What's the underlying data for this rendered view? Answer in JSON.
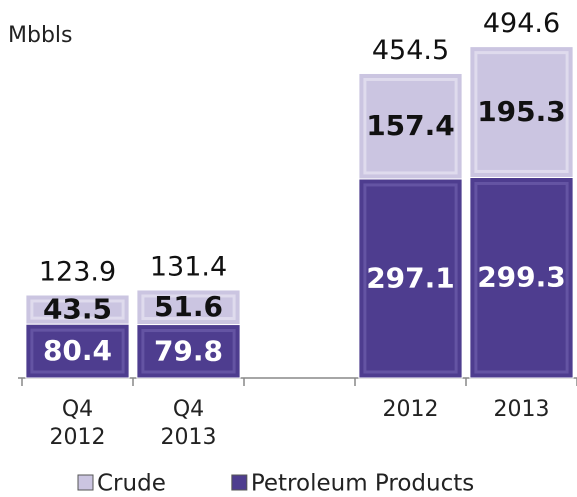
{
  "chart_data": {
    "type": "stacked_bar",
    "unit_label": "Mbbls",
    "categories": [
      "Q4\n2012",
      "Q4\n2013",
      null,
      "2012",
      "2013"
    ],
    "series": [
      {
        "name": "Petroleum Products",
        "color": "#4e3d8f",
        "values": [
          80.4,
          79.8,
          null,
          297.1,
          299.3
        ]
      },
      {
        "name": "Crude",
        "color": "#cbc5e1",
        "values": [
          43.5,
          51.6,
          null,
          157.4,
          195.3
        ]
      }
    ],
    "totals": [
      123.9,
      131.4,
      null,
      454.5,
      494.6
    ],
    "ylim": [
      0,
      500
    ],
    "legend": "bottom"
  }
}
